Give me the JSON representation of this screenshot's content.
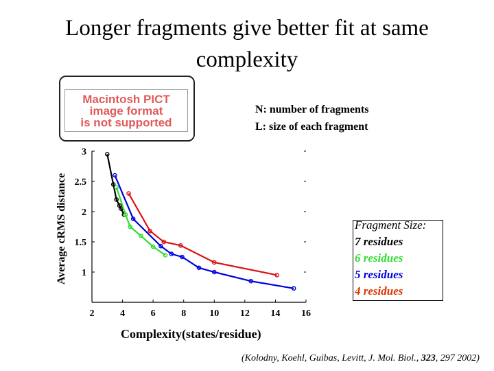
{
  "slide": {
    "title": "Longer fragments give better fit at same complexity",
    "pict_placeholder": [
      "Macintosh PICT",
      "image format",
      "is not supported"
    ],
    "notes": [
      "N: number of fragments",
      "L: size of each fragment"
    ],
    "citation_parts": [
      "(Kolodny, Koehl, Guibas, Levitt, J. Mol. Biol., ",
      "323",
      ", 297 2002)"
    ]
  },
  "chart_data": {
    "type": "line",
    "title": "",
    "xlabel": "Complexity(states/residue)",
    "ylabel": "Average cRMS distance",
    "xlim": [
      2,
      16
    ],
    "ylim": [
      0.5,
      3
    ],
    "xticks": [
      2,
      4,
      6,
      8,
      10,
      12,
      14,
      16
    ],
    "yticks": [
      1,
      1.5,
      2,
      2.5,
      3
    ],
    "ytick_labels": [
      "1",
      "1.5",
      "2",
      "2.5",
      "3"
    ],
    "grid": false,
    "legend_title": "Fragment Size:",
    "legend_position": "right",
    "series": [
      {
        "name": "7 residues",
        "color": "#000000",
        "x": [
          3.0,
          3.4,
          3.6,
          3.8,
          3.9,
          4.1
        ],
        "y": [
          2.95,
          2.45,
          2.2,
          2.1,
          2.05,
          1.95
        ]
      },
      {
        "name": "6 residues",
        "color": "#33dd33",
        "x": [
          3.6,
          4.2,
          4.5,
          5.2,
          6.0,
          6.8
        ],
        "y": [
          2.4,
          1.95,
          1.75,
          1.6,
          1.42,
          1.28
        ]
      },
      {
        "name": "5 residues",
        "color": "#0000dd",
        "x": [
          3.5,
          4.7,
          6.5,
          7.2,
          7.9,
          9.0,
          10.0,
          12.4,
          15.2
        ],
        "y": [
          2.6,
          1.88,
          1.43,
          1.3,
          1.25,
          1.07,
          1.0,
          0.85,
          0.73
        ]
      },
      {
        "name": "4 residues",
        "color": "#dd1111",
        "x": [
          4.4,
          5.8,
          6.7,
          7.8,
          10.0,
          14.1
        ],
        "y": [
          2.3,
          1.68,
          1.5,
          1.44,
          1.16,
          0.95
        ]
      }
    ],
    "legend_colors": [
      "#000000",
      "#33dd33",
      "#0000dd",
      "#dd3300"
    ]
  }
}
